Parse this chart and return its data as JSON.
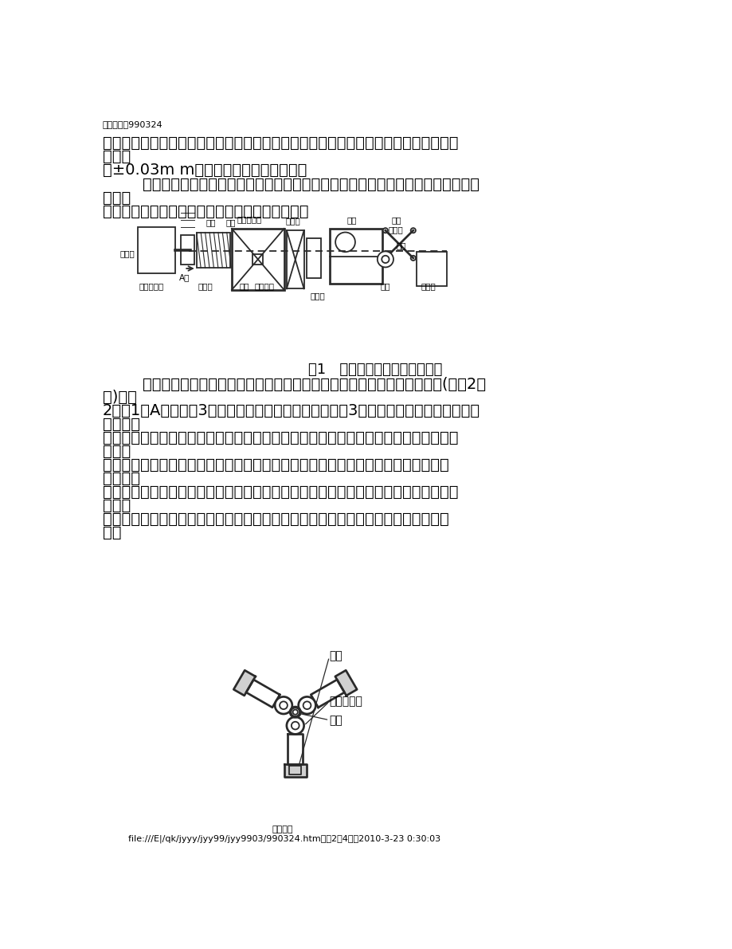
{
  "page_header": "机床与液压990324",
  "para1_line1": "关上，刀架位置由车床数控系统按需要加工零件的尺寸控制，从而实现送料柔性，送料",
  "para1_line2": "精度达",
  "para1_line3": "到±0.03m m，能节约材料及加工费用。",
  "para2_line1": "        气动机械手的活塞杆顶端安装了径向轴承及端面轴承，起支承限位作用，棒料在其",
  "para2_line2": "中旋转",
  "para2_line3": "时只能带动轴承内圈旋转，不会引起活塞杆旋转。",
  "fig1_caption": "图1   数控车床的自动上下料系统",
  "para3_line1": "        为防止车削长棒料时可能产生大幅度振动，在车床头部安一个气动中心架(如图2所",
  "para3_line2": "示)，图",
  "para3_line3": "2是图1的A向视图，3个气缸受同一个气阀控制，进气时3个活塞杆顶部的橡皮滚轮同时",
  "para3_line4": "压紧棒料",
  "para3_line5": "，并随棒料转动而自转，使棒料处于车床主轴中心位置，从而防止或减少振动。活塞杆",
  "para3_line6": "伸入车",
  "para3_line7": "床主轴孔送料时，橡皮滚轮可压在活塞杆上，起支承作用。当棒料被加工到剩下卡头",
  "para3_line8": "时，机床",
  "para3_line9": "的控制系统使刀架后退，残料落入废料箱中，同时使机械手退回原位，将下一根棒料送",
  "para3_line10": "上，连",
  "para3_line11": "续给机床供料。每次送料长度随需要加工零件的尺寸而变，实现上料柔性自动化的要",
  "para3_line12": "求。",
  "fig2_label_qigang": "气缸",
  "fig2_label_zhongxin": "中心架滚轮",
  "fig2_label_bangrao": "棒料",
  "footer_line1": "万方数据",
  "footer_line2": "file:///E|/qk/jyyy/jyy99/jyy9903/990324.htm（第2／4页）2010-3-23 0:30:03",
  "bg_color": "#ffffff",
  "text_color": "#000000",
  "lc": "#2a2a2a"
}
